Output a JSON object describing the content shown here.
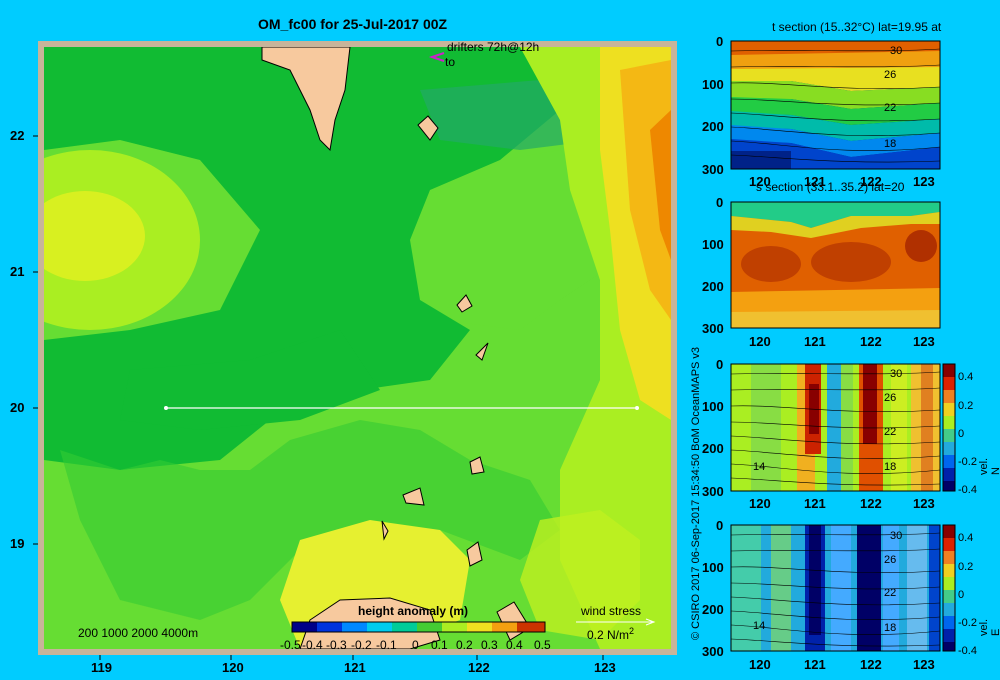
{
  "title": "OM_fc00 for 25-Jul-2017 00Z",
  "drifters_label": "drifters 72h@12h",
  "drifters_to": "to",
  "credit": "© CSIRO 2017   06-Sep-2017 15:34:50 BoM OceanMAPS v3",
  "map": {
    "lon_ticks": [
      "119",
      "120",
      "121",
      "122",
      "123"
    ],
    "lat_ticks": [
      "22",
      "21",
      "20",
      "19"
    ],
    "depth_legend": "200  1000  2000  4000m",
    "colorbar_title": "height anomaly  (m)",
    "colorbar_ticks": [
      "-0.5",
      "-0.4",
      "-0.3",
      "-0.2",
      "-0.1",
      "0",
      "0.1",
      "0.2",
      "0.3",
      "0.4",
      "0.5"
    ],
    "wind_label": "wind stress",
    "wind_scale": "0.2 N/m",
    "wind_scale_sup": "2"
  },
  "sections": [
    {
      "title": "t section (15..32°C) lat=19.95 at",
      "depth_ticks": [
        "0",
        "100",
        "200",
        "300"
      ],
      "lon_ticks": [
        "120",
        "121",
        "122",
        "123"
      ],
      "contour_labels": [
        "30",
        "26",
        "22",
        "18"
      ],
      "colorbar": null
    },
    {
      "title": "s section (33.1..35.2) lat=20",
      "depth_ticks": [
        "0",
        "100",
        "200",
        "300"
      ],
      "lon_ticks": [
        "120",
        "121",
        "122",
        "123"
      ],
      "contour_labels": [],
      "colorbar": null
    },
    {
      "title": "",
      "depth_ticks": [
        "0",
        "100",
        "200",
        "300"
      ],
      "lon_ticks": [
        "120",
        "121",
        "122",
        "123"
      ],
      "contour_labels": [
        "30",
        "26",
        "22",
        "14",
        "18"
      ],
      "colorbar": {
        "label": "vel. N  (m/s)",
        "ticks": [
          "0.4",
          "0.2",
          "0",
          "-0.2",
          "-0.4"
        ]
      }
    },
    {
      "title": "",
      "depth_ticks": [
        "0",
        "100",
        "200",
        "300"
      ],
      "lon_ticks": [
        "120",
        "121",
        "122",
        "123"
      ],
      "contour_labels": [
        "30",
        "26",
        "22",
        "14",
        "18"
      ],
      "colorbar": {
        "label": "vel. E  (m/s)",
        "ticks": [
          "0.4",
          "0.2",
          "0",
          "-0.2",
          "-0.4"
        ]
      }
    }
  ]
}
